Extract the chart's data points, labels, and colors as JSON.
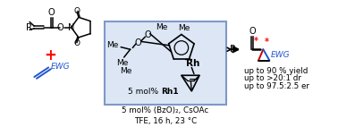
{
  "background_color": "#ffffff",
  "box_facecolor": "#dce6f5",
  "box_edge_color": "#8098c8",
  "plus_color": "#ff0000",
  "ewg_color": "#2255cc",
  "star_color": "#ff0000",
  "cp_red": "#cc0000",
  "cp_blue": "#2255cc",
  "text_rh1_normal": "5 mol% ",
  "text_rh1_bold": "Rh1",
  "text_conditions": "5 mol% (BzO)₂, CsOAc\nTFE, 16 h, 23 °C",
  "text_yield": "up to 90 % yield",
  "text_dr": "up to >20:1 dr",
  "text_er": "up to 97.5:2.5 er",
  "figsize": [
    3.78,
    1.42
  ],
  "dpi": 100
}
